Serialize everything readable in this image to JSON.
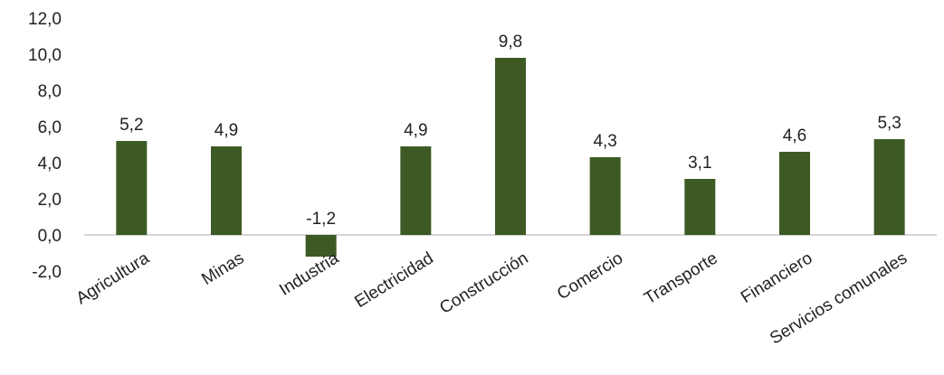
{
  "chart_data": {
    "type": "bar",
    "categories": [
      "Agricultura",
      "Minas",
      "Industria",
      "Electricidad",
      "Construcción",
      "Comercio",
      "Transporte",
      "Financiero",
      "Servicios comunales"
    ],
    "values": [
      5.2,
      4.9,
      -1.2,
      4.9,
      9.8,
      4.3,
      3.1,
      4.6,
      5.3
    ],
    "data_labels": [
      "5,2",
      "4,9",
      "-1,2",
      "4,9",
      "9,8",
      "4,3",
      "3,1",
      "4,6",
      "5,3"
    ],
    "y_ticks": [
      -2,
      0,
      2,
      4,
      6,
      8,
      10,
      12
    ],
    "y_tick_labels": [
      "-2,0",
      "0,0",
      "2,0",
      "4,0",
      "6,0",
      "8,0",
      "10,0",
      "12,0"
    ],
    "ylim": [
      -2,
      12
    ],
    "bar_color": "#3d5a24",
    "grid": false,
    "legend": "none",
    "title": "",
    "xlabel": "",
    "ylabel": ""
  }
}
